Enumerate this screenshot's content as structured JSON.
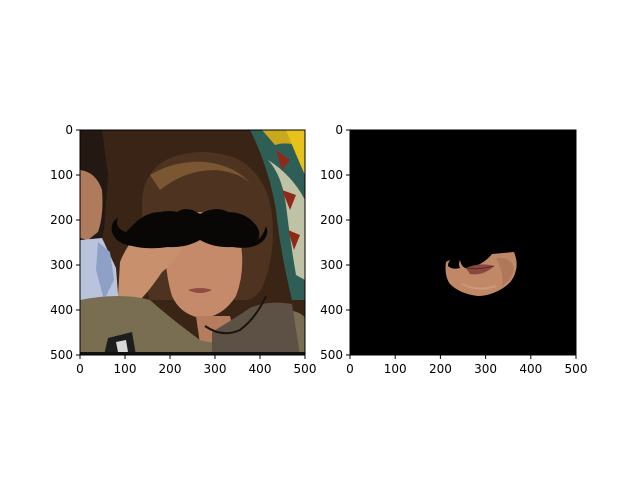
{
  "chart_data": [
    {
      "type": "image",
      "content": "photo",
      "xlim": [
        0,
        500
      ],
      "ylim": [
        500,
        0
      ],
      "xticks": [
        0,
        100,
        200,
        300,
        400,
        500
      ],
      "yticks": [
        0,
        100,
        200,
        300,
        400,
        500
      ],
      "xtick_labels": [
        "0",
        "100",
        "200",
        "300",
        "400",
        "500"
      ],
      "ytick_labels": [
        "0",
        "100",
        "200",
        "300",
        "400",
        "500"
      ],
      "grid": false
    },
    {
      "type": "image",
      "content": "mask-on-black",
      "xlim": [
        0,
        500
      ],
      "ylim": [
        500,
        0
      ],
      "xticks": [
        0,
        100,
        200,
        300,
        400,
        500
      ],
      "yticks": [
        0,
        100,
        200,
        300,
        400,
        500
      ],
      "xtick_labels": [
        "0",
        "100",
        "200",
        "300",
        "400",
        "500"
      ],
      "ytick_labels": [
        "0",
        "100",
        "200",
        "300",
        "400",
        "500"
      ],
      "grid": false
    }
  ]
}
